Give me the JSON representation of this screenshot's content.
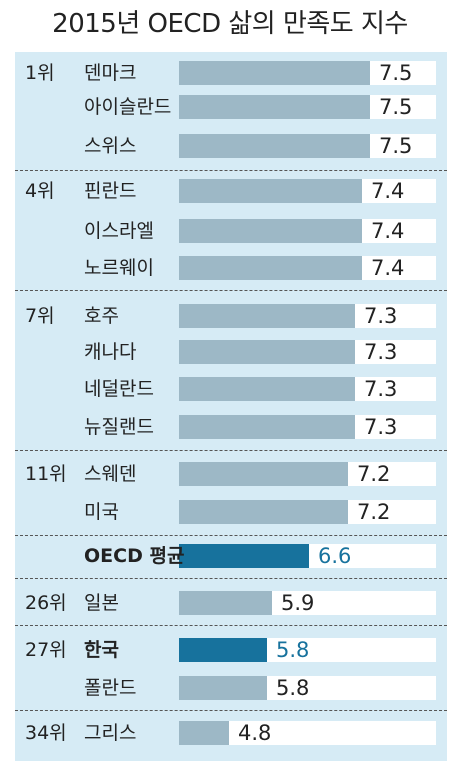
{
  "title": "2015년 OECD 삶의 만족도 지수",
  "colors": {
    "background": "#d6ebf5",
    "bar": "#9db8c6",
    "highlight": "#17729d",
    "track": "#ffffff",
    "value": "#222222"
  },
  "chart_data": {
    "type": "bar",
    "orientation": "horizontal",
    "title": "2015년 OECD 삶의 만족도 지수",
    "xlim": [
      0,
      7.5
    ],
    "rows": [
      {
        "rank": "1위",
        "label": "덴마크",
        "value": 7.5,
        "highlight": false
      },
      {
        "rank": "",
        "label": "아이슬란드",
        "value": 7.5,
        "highlight": false
      },
      {
        "rank": "",
        "label": "스위스",
        "value": 7.5,
        "highlight": false
      },
      {
        "rank": "4위",
        "label": "핀란드",
        "value": 7.4,
        "highlight": false
      },
      {
        "rank": "",
        "label": "이스라엘",
        "value": 7.4,
        "highlight": false
      },
      {
        "rank": "",
        "label": "노르웨이",
        "value": 7.4,
        "highlight": false
      },
      {
        "rank": "7위",
        "label": "호주",
        "value": 7.3,
        "highlight": false
      },
      {
        "rank": "",
        "label": "캐나다",
        "value": 7.3,
        "highlight": false
      },
      {
        "rank": "",
        "label": "네덜란드",
        "value": 7.3,
        "highlight": false
      },
      {
        "rank": "",
        "label": "뉴질랜드",
        "value": 7.3,
        "highlight": false
      },
      {
        "rank": "11위",
        "label": "스웨덴",
        "value": 7.2,
        "highlight": false
      },
      {
        "rank": "",
        "label": "미국",
        "value": 7.2,
        "highlight": false
      },
      {
        "rank": "",
        "label": "OECD 평균",
        "value": 6.6,
        "highlight": true
      },
      {
        "rank": "26위",
        "label": "일본",
        "value": 5.9,
        "highlight": false
      },
      {
        "rank": "27위",
        "label": "한국",
        "value": 5.8,
        "highlight": true
      },
      {
        "rank": "",
        "label": "폴란드",
        "value": 5.8,
        "highlight": false
      },
      {
        "rank": "34위",
        "label": "그리스",
        "value": 4.8,
        "highlight": false
      }
    ]
  }
}
